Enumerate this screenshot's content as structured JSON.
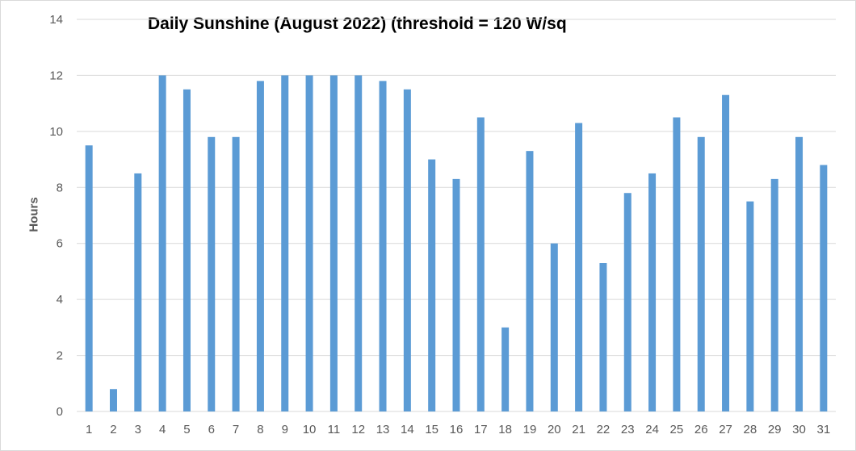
{
  "chart_data": {
    "type": "bar",
    "title": "Daily Sunshine (August 2022) (threshold = 120 W/sq",
    "xlabel": "",
    "ylabel": "Hours",
    "ylim": [
      0,
      14
    ],
    "yticks": [
      0,
      2,
      4,
      6,
      8,
      10,
      12,
      14
    ],
    "grid": true,
    "legend": "none",
    "bar_color": "#5b9bd5",
    "categories": [
      "1",
      "2",
      "3",
      "4",
      "5",
      "6",
      "7",
      "8",
      "9",
      "10",
      "11",
      "12",
      "13",
      "14",
      "15",
      "16",
      "17",
      "18",
      "19",
      "20",
      "21",
      "22",
      "23",
      "24",
      "25",
      "26",
      "27",
      "28",
      "29",
      "30",
      "31"
    ],
    "values": [
      9.5,
      0.8,
      8.5,
      12,
      11.5,
      9.8,
      9.8,
      11.8,
      12,
      12,
      12,
      12,
      11.8,
      11.5,
      9.0,
      8.3,
      10.5,
      3.0,
      9.3,
      6.0,
      10.3,
      5.3,
      7.8,
      8.5,
      10.5,
      9.8,
      11.3,
      7.5,
      8.3,
      9.8,
      8.8
    ]
  }
}
